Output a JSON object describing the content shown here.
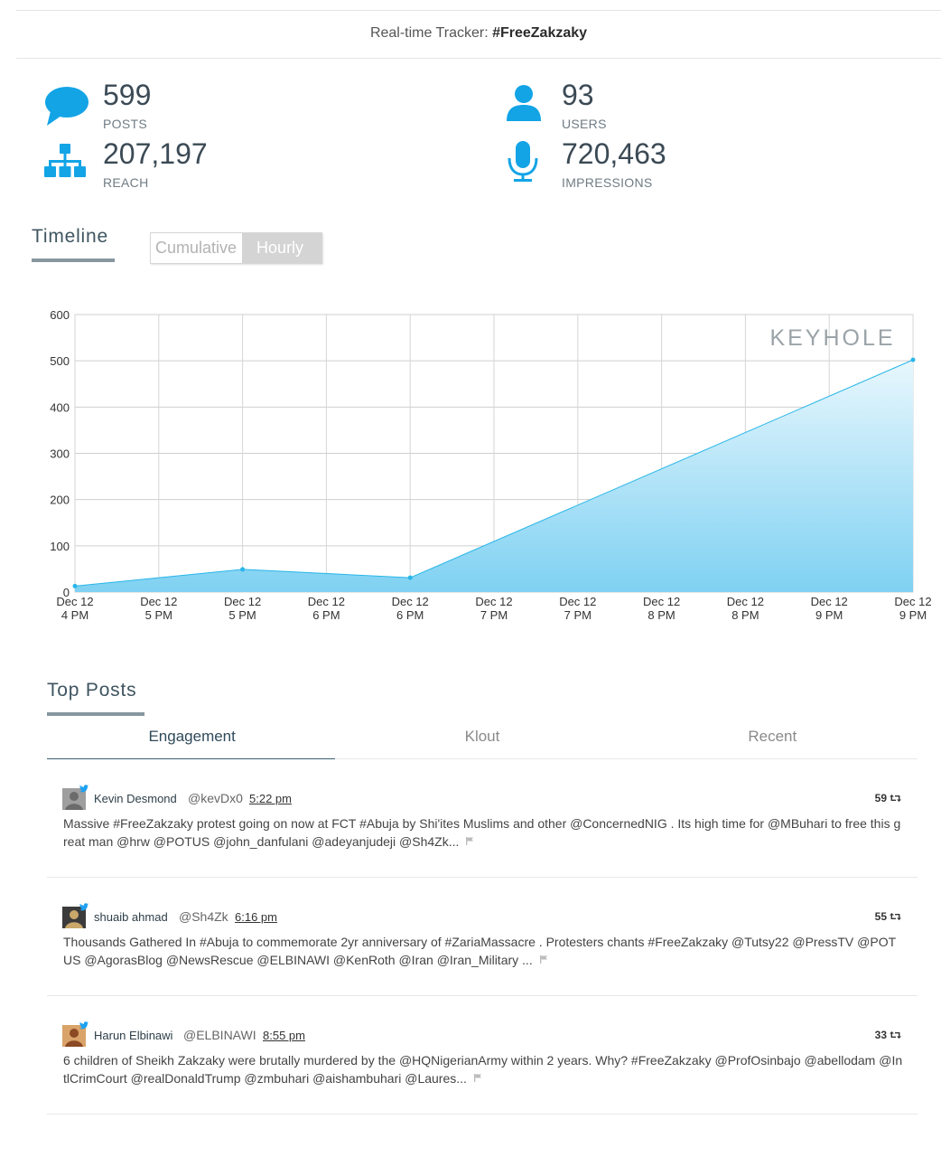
{
  "header": {
    "prefix": "Real-time Tracker: ",
    "hashtag": "#FreeZakzaky"
  },
  "stats": {
    "posts": {
      "value": "599",
      "label": "POSTS",
      "icon": "speech-bubble-icon"
    },
    "users": {
      "value": "93",
      "label": "USERS",
      "icon": "user-icon"
    },
    "reach": {
      "value": "207,197",
      "label": "REACH",
      "icon": "sitemap-icon"
    },
    "impressions": {
      "value": "720,463",
      "label": "IMPRESSIONS",
      "icon": "microphone-icon"
    }
  },
  "timeline": {
    "title": "Timeline",
    "toggle": {
      "cumulative": "Cumulative",
      "hourly": "Hourly",
      "selected": "hourly"
    }
  },
  "chart_data": {
    "type": "area",
    "x": [
      [
        "Dec 12",
        "4 PM"
      ],
      [
        "Dec 12",
        "5 PM"
      ],
      [
        "Dec 12",
        "5 PM"
      ],
      [
        "Dec 12",
        "6 PM"
      ],
      [
        "Dec 12",
        "6 PM"
      ],
      [
        "Dec 12",
        "7 PM"
      ],
      [
        "Dec 12",
        "7 PM"
      ],
      [
        "Dec 12",
        "8 PM"
      ],
      [
        "Dec 12",
        "8 PM"
      ],
      [
        "Dec 12",
        "9 PM"
      ],
      [
        "Dec 12",
        "9 PM"
      ]
    ],
    "points": [
      {
        "x": 0,
        "y": 13
      },
      {
        "x": 2,
        "y": 49
      },
      {
        "x": 4,
        "y": 31
      },
      {
        "x": 10,
        "y": 502
      }
    ],
    "ylim": [
      0,
      600
    ],
    "yticks": [
      0,
      100,
      200,
      300,
      400,
      500,
      600
    ],
    "grid": true,
    "watermark": "KEYHOLE",
    "color": "#29b6e8"
  },
  "top_posts": {
    "title": "Top Posts",
    "tabs": [
      "Engagement",
      "Klout",
      "Recent"
    ],
    "active_tab": 0,
    "posts": [
      {
        "name": "Kevin Desmond",
        "handle": "@kevDx0",
        "time": "5:22 pm",
        "retweets": "59",
        "text": "Massive #FreeZakzaky protest going on now at FCT #Abuja by Shi'ites Muslims and other @ConcernedNIG . Its high time for @MBuhari to free this great man @hrw @POTUS @john_danfulani @adeyanjudeji @Sh4Zk..."
      },
      {
        "name": "shuaib ahmad",
        "handle": "@Sh4Zk",
        "time": "6:16 pm",
        "retweets": "55",
        "text": "Thousands Gathered In #Abuja to commemorate 2yr anniversary of #ZariaMassacre . Protesters chants #FreeZakzaky @Tutsy22 @PressTV @POTUS @AgorasBlog @NewsRescue @ELBINAWI @KenRoth @Iran @Iran_Military ..."
      },
      {
        "name": "Harun Elbinawi",
        "handle": "@ELBINAWI",
        "time": "8:55 pm",
        "retweets": "33",
        "text": "6 children of Sheikh Zakzaky were brutally murdered by the @HQNigerianArmy within 2 years. Why? #FreeZakzaky @ProfOsinbajo @abellodam @IntlCrimCourt @realDonaldTrump @zmbuhari @aishambuhari @Laures..."
      }
    ]
  },
  "colors": {
    "accent": "#13a4e6",
    "chart_fill": "#29b6e8",
    "header_text": "#37474f"
  }
}
